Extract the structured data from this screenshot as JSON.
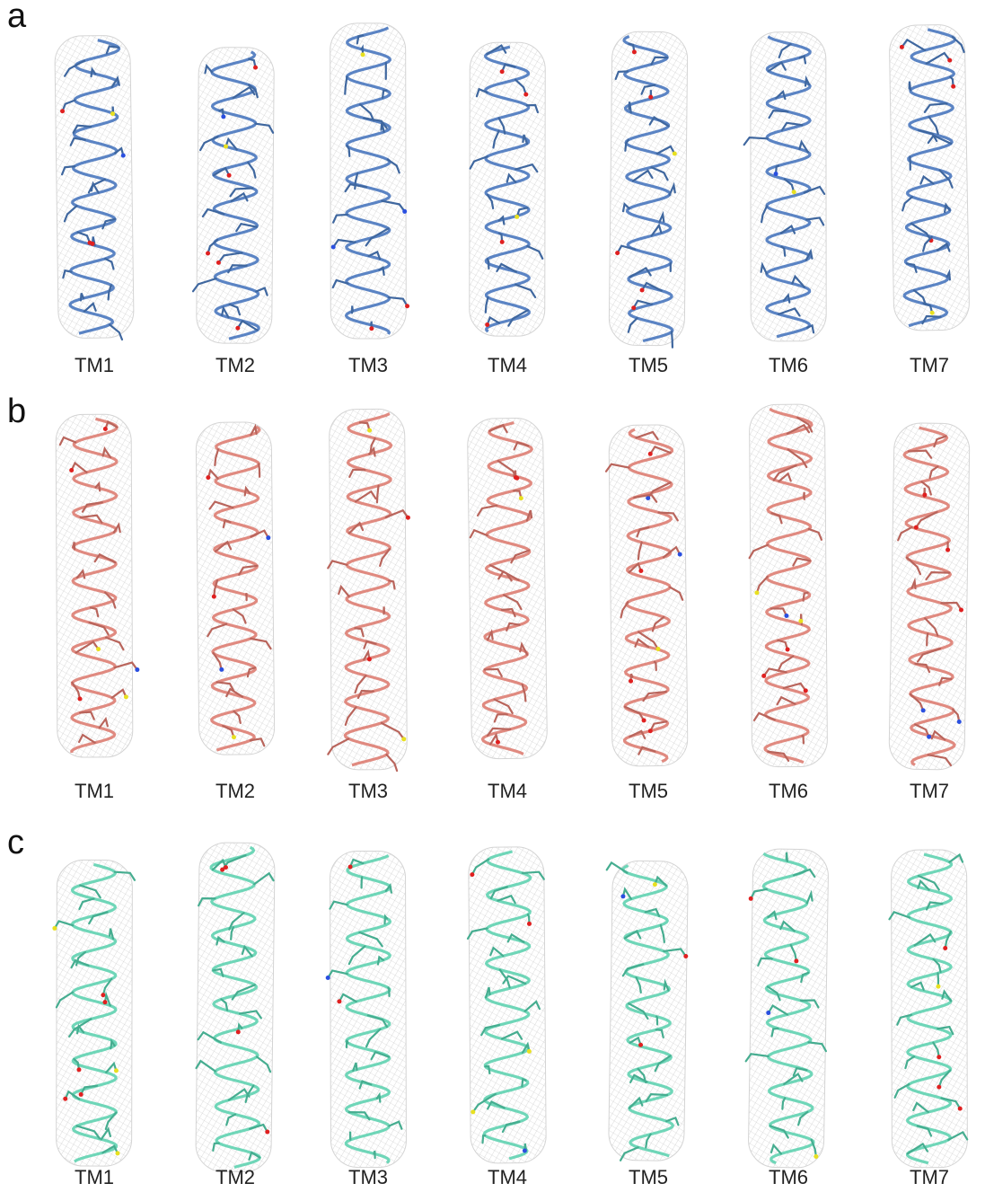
{
  "panels": [
    {
      "letter": "a",
      "labels": [
        "TM1",
        "TM2",
        "TM3",
        "TM4",
        "TM5",
        "TM6",
        "TM7"
      ]
    },
    {
      "letter": "b",
      "labels": [
        "TM1",
        "TM2",
        "TM3",
        "TM4",
        "TM5",
        "TM6",
        "TM7"
      ]
    },
    {
      "letter": "c",
      "labels": [
        "TM1",
        "TM2",
        "TM3",
        "TM4",
        "TM5",
        "TM6",
        "TM7"
      ]
    }
  ]
}
